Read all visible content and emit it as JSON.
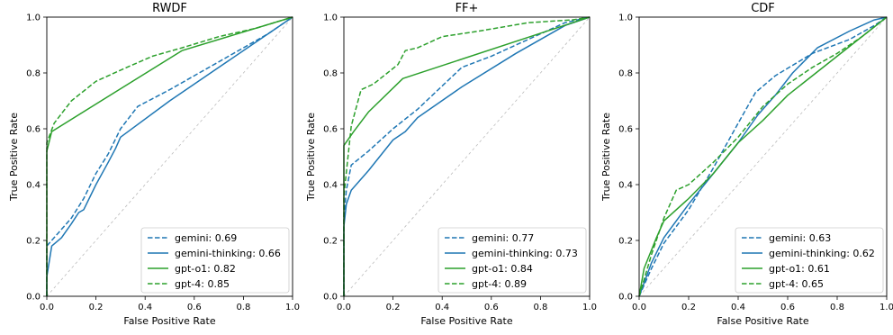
{
  "chart_data": [
    {
      "type": "line",
      "title": "RWDF",
      "xlabel": "False Positive Rate",
      "ylabel": "True Positive Rate",
      "xlim": [
        0,
        1
      ],
      "ylim": [
        0,
        1
      ],
      "xticks": [
        "0.0",
        "0.2",
        "0.4",
        "0.6",
        "0.8",
        "1.0"
      ],
      "yticks": [
        "0.0",
        "0.2",
        "0.4",
        "0.6",
        "0.8",
        "1.0"
      ],
      "grid": false,
      "legend_position": "lower-right",
      "series": [
        {
          "name": "gemini: 0.69",
          "color": "#1f77b4",
          "dash": "dashed",
          "points": [
            [
              0,
              0
            ],
            [
              0,
              0.18
            ],
            [
              0.05,
              0.23
            ],
            [
              0.1,
              0.28
            ],
            [
              0.15,
              0.35
            ],
            [
              0.2,
              0.44
            ],
            [
              0.25,
              0.51
            ],
            [
              0.3,
              0.6
            ],
            [
              0.37,
              0.68
            ],
            [
              0.5,
              0.74
            ],
            [
              0.7,
              0.84
            ],
            [
              0.9,
              0.94
            ],
            [
              1,
              1
            ]
          ]
        },
        {
          "name": "gemini-thinking: 0.66",
          "color": "#1f77b4",
          "dash": "solid",
          "points": [
            [
              0,
              0
            ],
            [
              0,
              0.07
            ],
            [
              0.02,
              0.18
            ],
            [
              0.06,
              0.21
            ],
            [
              0.1,
              0.26
            ],
            [
              0.13,
              0.3
            ],
            [
              0.15,
              0.31
            ],
            [
              0.2,
              0.4
            ],
            [
              0.25,
              0.48
            ],
            [
              0.28,
              0.53
            ],
            [
              0.3,
              0.57
            ],
            [
              0.5,
              0.7
            ],
            [
              0.7,
              0.82
            ],
            [
              0.9,
              0.94
            ],
            [
              1,
              1
            ]
          ]
        },
        {
          "name": "gpt-o1: 0.82",
          "color": "#2ca02c",
          "dash": "solid",
          "points": [
            [
              0,
              0
            ],
            [
              0,
              0.52
            ],
            [
              0.02,
              0.59
            ],
            [
              0.55,
              0.88
            ],
            [
              1,
              1
            ]
          ]
        },
        {
          "name": "gpt-4: 0.85",
          "color": "#2ca02c",
          "dash": "dashed",
          "points": [
            [
              0,
              0
            ],
            [
              0,
              0.55
            ],
            [
              0.03,
              0.62
            ],
            [
              0.1,
              0.7
            ],
            [
              0.2,
              0.77
            ],
            [
              0.3,
              0.81
            ],
            [
              0.43,
              0.86
            ],
            [
              0.55,
              0.89
            ],
            [
              0.7,
              0.93
            ],
            [
              0.85,
              0.96
            ],
            [
              1,
              1
            ]
          ]
        }
      ],
      "legend": [
        "gemini: 0.69",
        "gemini-thinking: 0.66",
        "gpt-o1: 0.82",
        "gpt-4: 0.85"
      ]
    },
    {
      "type": "line",
      "title": "FF+",
      "xlabel": "False Positive Rate",
      "ylabel": "True Positive Rate",
      "xlim": [
        0,
        1
      ],
      "ylim": [
        0,
        1
      ],
      "xticks": [
        "0.0",
        "0.2",
        "0.4",
        "0.6",
        "0.8",
        "1.0"
      ],
      "yticks": [
        "0.0",
        "0.2",
        "0.4",
        "0.6",
        "0.8",
        "1.0"
      ],
      "grid": false,
      "legend_position": "lower-right",
      "series": [
        {
          "name": "gemini: 0.77",
          "color": "#1f77b4",
          "dash": "dashed",
          "points": [
            [
              0,
              0
            ],
            [
              0,
              0.28
            ],
            [
              0.01,
              0.38
            ],
            [
              0.03,
              0.47
            ],
            [
              0.1,
              0.52
            ],
            [
              0.2,
              0.6
            ],
            [
              0.3,
              0.67
            ],
            [
              0.48,
              0.82
            ],
            [
              0.6,
              0.86
            ],
            [
              0.8,
              0.94
            ],
            [
              0.9,
              0.98
            ],
            [
              1,
              1
            ]
          ]
        },
        {
          "name": "gemini-thinking: 0.73",
          "color": "#1f77b4",
          "dash": "solid",
          "points": [
            [
              0,
              0
            ],
            [
              0,
              0.25
            ],
            [
              0.01,
              0.33
            ],
            [
              0.03,
              0.38
            ],
            [
              0.1,
              0.45
            ],
            [
              0.2,
              0.56
            ],
            [
              0.25,
              0.59
            ],
            [
              0.3,
              0.64
            ],
            [
              0.48,
              0.75
            ],
            [
              0.7,
              0.87
            ],
            [
              0.9,
              0.97
            ],
            [
              1,
              1
            ]
          ]
        },
        {
          "name": "gpt-o1: 0.84",
          "color": "#2ca02c",
          "dash": "solid",
          "points": [
            [
              0,
              0
            ],
            [
              0,
              0.54
            ],
            [
              0.04,
              0.59
            ],
            [
              0.1,
              0.66
            ],
            [
              0.24,
              0.78
            ],
            [
              1,
              1
            ]
          ]
        },
        {
          "name": "gpt-4: 0.89",
          "color": "#2ca02c",
          "dash": "dashed",
          "points": [
            [
              0,
              0
            ],
            [
              0,
              0.36
            ],
            [
              0.03,
              0.61
            ],
            [
              0.07,
              0.74
            ],
            [
              0.12,
              0.76
            ],
            [
              0.22,
              0.83
            ],
            [
              0.25,
              0.88
            ],
            [
              0.3,
              0.89
            ],
            [
              0.4,
              0.93
            ],
            [
              0.55,
              0.95
            ],
            [
              0.75,
              0.98
            ],
            [
              0.93,
              0.99
            ],
            [
              1,
              1
            ]
          ]
        }
      ],
      "legend": [
        "gemini: 0.77",
        "gemini-thinking: 0.73",
        "gpt-o1: 0.84",
        "gpt-4: 0.89"
      ]
    },
    {
      "type": "line",
      "title": "CDF",
      "xlabel": "False Positive Rate",
      "ylabel": "True Positive Rate",
      "xlim": [
        0,
        1
      ],
      "ylim": [
        0,
        1
      ],
      "xticks": [
        "0.0",
        "0.2",
        "0.4",
        "0.6",
        "0.8",
        "1.0"
      ],
      "yticks": [
        "0.0",
        "0.2",
        "0.4",
        "0.6",
        "0.8",
        "1.0"
      ],
      "grid": false,
      "legend_position": "lower-right",
      "series": [
        {
          "name": "gemini: 0.63",
          "color": "#1f77b4",
          "dash": "dashed",
          "points": [
            [
              0,
              0
            ],
            [
              0.05,
              0.1
            ],
            [
              0.1,
              0.19
            ],
            [
              0.2,
              0.31
            ],
            [
              0.3,
              0.46
            ],
            [
              0.4,
              0.62
            ],
            [
              0.47,
              0.73
            ],
            [
              0.55,
              0.79
            ],
            [
              0.7,
              0.87
            ],
            [
              0.85,
              0.92
            ],
            [
              0.95,
              0.97
            ],
            [
              1,
              1
            ]
          ]
        },
        {
          "name": "gemini-thinking: 0.62",
          "color": "#1f77b4",
          "dash": "solid",
          "points": [
            [
              0,
              0
            ],
            [
              0.05,
              0.12
            ],
            [
              0.1,
              0.21
            ],
            [
              0.2,
              0.33
            ],
            [
              0.3,
              0.44
            ],
            [
              0.4,
              0.55
            ],
            [
              0.48,
              0.65
            ],
            [
              0.55,
              0.72
            ],
            [
              0.62,
              0.8
            ],
            [
              0.72,
              0.89
            ],
            [
              0.85,
              0.95
            ],
            [
              0.95,
              0.99
            ],
            [
              1,
              1
            ]
          ]
        },
        {
          "name": "gpt-o1: 0.61",
          "color": "#2ca02c",
          "dash": "solid",
          "points": [
            [
              0,
              0
            ],
            [
              0.02,
              0.1
            ],
            [
              0.07,
              0.21
            ],
            [
              0.1,
              0.27
            ],
            [
              0.2,
              0.35
            ],
            [
              0.3,
              0.44
            ],
            [
              0.4,
              0.55
            ],
            [
              0.5,
              0.63
            ],
            [
              0.6,
              0.72
            ],
            [
              0.8,
              0.86
            ],
            [
              1,
              1
            ]
          ]
        },
        {
          "name": "gpt-4: 0.65",
          "color": "#2ca02c",
          "dash": "dashed",
          "points": [
            [
              0,
              0
            ],
            [
              0.05,
              0.15
            ],
            [
              0.1,
              0.28
            ],
            [
              0.15,
              0.38
            ],
            [
              0.2,
              0.4
            ],
            [
              0.3,
              0.48
            ],
            [
              0.4,
              0.57
            ],
            [
              0.5,
              0.68
            ],
            [
              0.6,
              0.76
            ],
            [
              0.7,
              0.82
            ],
            [
              0.8,
              0.87
            ],
            [
              0.9,
              0.93
            ],
            [
              1,
              1
            ]
          ]
        }
      ],
      "legend": [
        "gemini: 0.63",
        "gemini-thinking: 0.62",
        "gpt-o1: 0.61",
        "gpt-4: 0.65"
      ]
    }
  ]
}
